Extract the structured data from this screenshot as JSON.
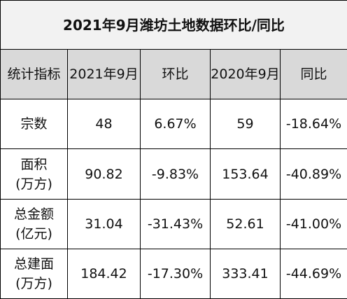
{
  "header": {
    "title": "2021年9月潍坊土地数据环比/同比"
  },
  "table": {
    "columns": [
      "统计指标",
      "2021年9月",
      "环比",
      "2020年9月",
      "同比"
    ],
    "rows": [
      [
        [
          "宗数"
        ],
        [
          "48"
        ],
        [
          "6.67%"
        ],
        [
          "59"
        ],
        [
          "-18.64%"
        ]
      ],
      [
        [
          "面积",
          "(万方)"
        ],
        [
          "90.82"
        ],
        [
          "-9.83%"
        ],
        [
          "153.64"
        ],
        [
          "-40.89%"
        ]
      ],
      [
        [
          "总金额",
          "(亿元)"
        ],
        [
          "31.04"
        ],
        [
          "-31.43%"
        ],
        [
          "52.61"
        ],
        [
          "-41.00%"
        ]
      ],
      [
        [
          "总建面",
          "(万方)"
        ],
        [
          "184.42"
        ],
        [
          "-17.30%"
        ],
        [
          "333.41"
        ],
        [
          "-44.69%"
        ]
      ]
    ]
  }
}
